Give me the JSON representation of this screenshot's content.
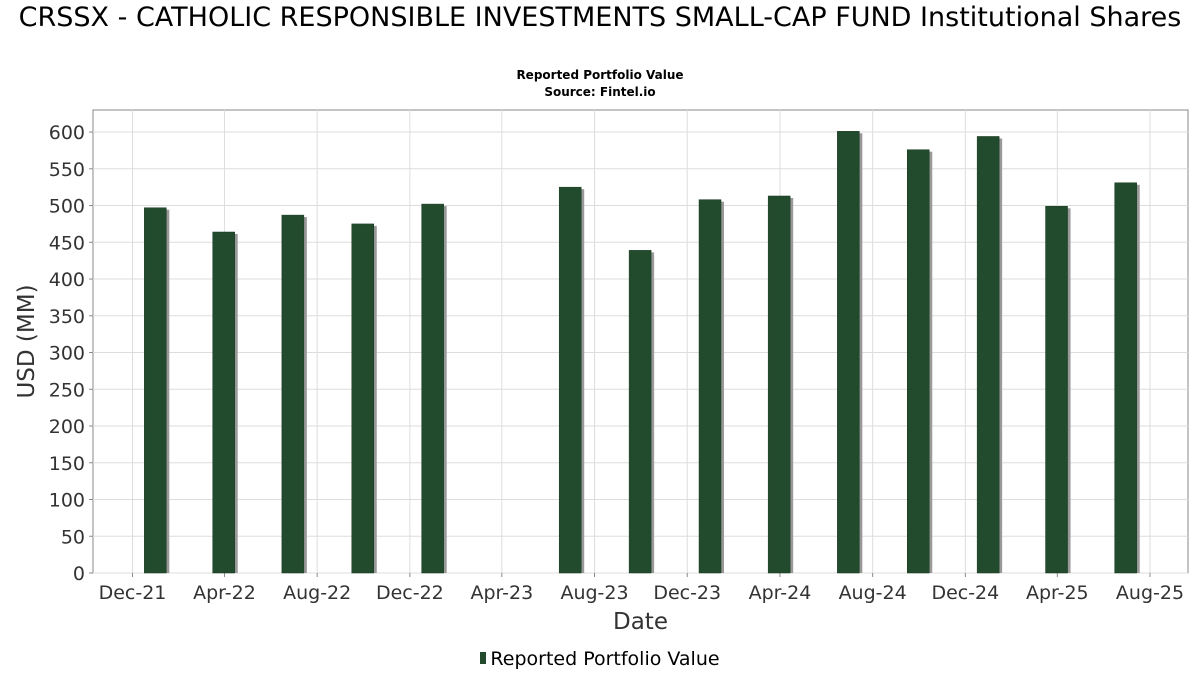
{
  "title": "CRSSX - CATHOLIC RESPONSIBLE INVESTMENTS SMALL-CAP FUND Institutional Shares",
  "subtitles": [
    "Reported Portfolio Value",
    "Source: Fintel.io"
  ],
  "colors": {
    "bar": "#224a2c",
    "bar_shadow": "#999999",
    "grid": "#dddddd",
    "axis": "#888888"
  },
  "chart_data": {
    "type": "bar",
    "title": "CRSSX - CATHOLIC RESPONSIBLE INVESTMENTS SMALL-CAP FUND Institutional Shares",
    "subtitle": "Reported Portfolio Value",
    "xlabel": "Date",
    "ylabel": "USD (MM)",
    "ylim": [
      0,
      630
    ],
    "yticks": [
      0,
      50,
      100,
      150,
      200,
      250,
      300,
      350,
      400,
      450,
      500,
      550,
      600
    ],
    "xlim": [
      "2021-10-10",
      "2025-09-20"
    ],
    "xticks": [
      {
        "label": "Dec-21",
        "date": "2021-12-01"
      },
      {
        "label": "Apr-22",
        "date": "2022-04-01"
      },
      {
        "label": "Aug-22",
        "date": "2022-08-01"
      },
      {
        "label": "Dec-22",
        "date": "2022-12-01"
      },
      {
        "label": "Apr-23",
        "date": "2023-04-01"
      },
      {
        "label": "Aug-23",
        "date": "2023-08-01"
      },
      {
        "label": "Dec-23",
        "date": "2023-12-01"
      },
      {
        "label": "Apr-24",
        "date": "2024-04-01"
      },
      {
        "label": "Aug-24",
        "date": "2024-08-01"
      },
      {
        "label": "Dec-24",
        "date": "2024-12-01"
      },
      {
        "label": "Apr-25",
        "date": "2025-04-01"
      },
      {
        "label": "Aug-25",
        "date": "2025-08-01"
      }
    ],
    "grid": true,
    "legend_position": "bottom-center",
    "series": [
      {
        "name": "Reported Portfolio Value",
        "points": [
          {
            "date": "2021-12-31",
            "value": 497
          },
          {
            "date": "2022-03-31",
            "value": 464
          },
          {
            "date": "2022-06-30",
            "value": 487
          },
          {
            "date": "2022-09-30",
            "value": 475
          },
          {
            "date": "2022-12-31",
            "value": 502
          },
          {
            "date": "2023-06-30",
            "value": 525
          },
          {
            "date": "2023-09-30",
            "value": 439
          },
          {
            "date": "2023-12-31",
            "value": 508
          },
          {
            "date": "2024-03-31",
            "value": 513
          },
          {
            "date": "2024-06-30",
            "value": 601
          },
          {
            "date": "2024-09-30",
            "value": 576
          },
          {
            "date": "2024-12-31",
            "value": 594
          },
          {
            "date": "2025-03-31",
            "value": 499
          },
          {
            "date": "2025-06-30",
            "value": 531
          }
        ]
      }
    ]
  }
}
